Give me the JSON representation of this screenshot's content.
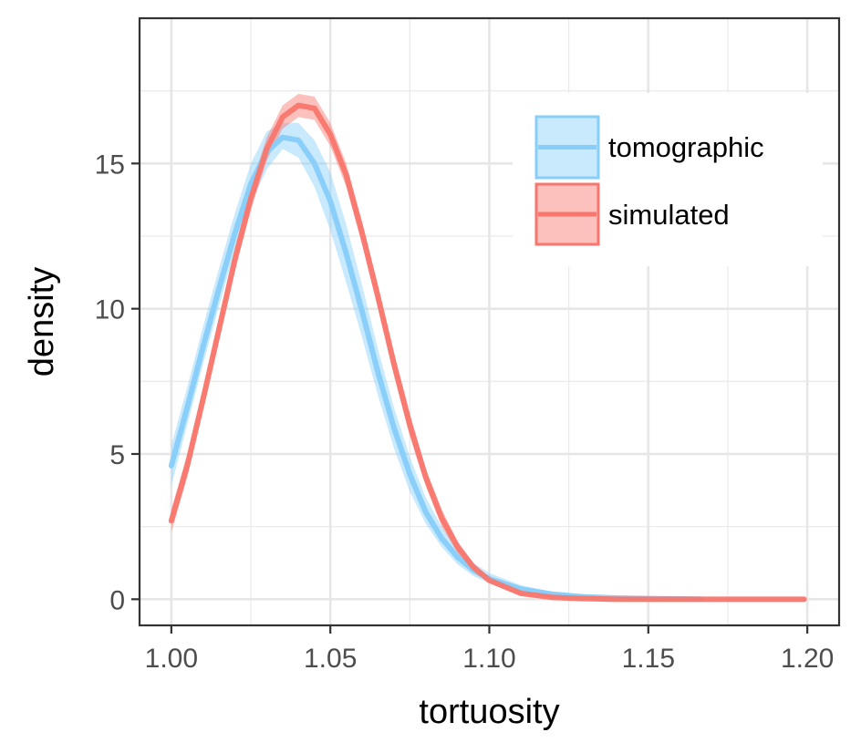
{
  "chart_data": {
    "type": "area",
    "xlabel": "tortuosity",
    "ylabel": "density",
    "xlim": [
      0.99,
      1.21
    ],
    "ylim": [
      -0.9,
      20.0
    ],
    "x_ticks": [
      1.0,
      1.05,
      1.1,
      1.15,
      1.2
    ],
    "x_tick_labels": [
      "1.00",
      "1.05",
      "1.10",
      "1.15",
      "1.20"
    ],
    "y_ticks": [
      0,
      5,
      10,
      15
    ],
    "y_tick_labels": [
      "0",
      "5",
      "10",
      "15"
    ],
    "grid": true,
    "legend_position": "top-right",
    "series": [
      {
        "name": "tomographic",
        "color": "#87CEFA",
        "x": [
          1.0,
          1.005,
          1.01,
          1.015,
          1.02,
          1.025,
          1.03,
          1.035,
          1.04,
          1.045,
          1.05,
          1.055,
          1.06,
          1.065,
          1.07,
          1.075,
          1.08,
          1.085,
          1.09,
          1.095,
          1.1,
          1.11,
          1.12,
          1.13,
          1.14,
          1.15,
          1.16,
          1.167
        ],
        "y": [
          4.6,
          6.6,
          8.7,
          10.7,
          12.6,
          14.3,
          15.4,
          15.9,
          15.8,
          15.0,
          13.7,
          11.9,
          9.9,
          7.8,
          5.9,
          4.3,
          3.0,
          2.1,
          1.45,
          1.0,
          0.7,
          0.35,
          0.17,
          0.08,
          0.04,
          0.02,
          0.01,
          0.0
        ],
        "lower": [
          3.9,
          6.0,
          8.1,
          10.1,
          12.0,
          13.6,
          14.8,
          15.5,
          15.2,
          14.2,
          12.7,
          10.9,
          9.0,
          7.0,
          5.2,
          3.7,
          2.6,
          1.8,
          1.2,
          0.8,
          0.55,
          0.25,
          0.1,
          0.04,
          0.02,
          0.0,
          0.0,
          0.0
        ],
        "upper": [
          5.3,
          7.3,
          9.4,
          11.4,
          13.3,
          15.0,
          16.1,
          16.4,
          16.4,
          15.8,
          14.7,
          12.9,
          10.8,
          8.6,
          6.6,
          4.9,
          3.5,
          2.5,
          1.75,
          1.25,
          0.9,
          0.48,
          0.25,
          0.13,
          0.07,
          0.04,
          0.02,
          0.01
        ]
      },
      {
        "name": "simulated",
        "color": "#F8766D",
        "x": [
          1.0,
          1.005,
          1.01,
          1.015,
          1.02,
          1.025,
          1.03,
          1.035,
          1.04,
          1.045,
          1.05,
          1.055,
          1.06,
          1.065,
          1.07,
          1.075,
          1.08,
          1.085,
          1.09,
          1.095,
          1.1,
          1.11,
          1.12,
          1.13,
          1.14,
          1.15,
          1.16,
          1.17,
          1.18,
          1.19,
          1.199
        ],
        "y": [
          2.7,
          4.6,
          6.9,
          9.3,
          11.7,
          13.8,
          15.5,
          16.6,
          17.0,
          16.9,
          16.0,
          14.6,
          12.6,
          10.4,
          8.1,
          6.0,
          4.2,
          2.8,
          1.8,
          1.1,
          0.65,
          0.2,
          0.06,
          0.02,
          0.0,
          0.0,
          0.0,
          0.0,
          0.0,
          0.0,
          0.0
        ],
        "lower": [
          2.3,
          4.2,
          6.5,
          8.9,
          11.3,
          13.4,
          15.1,
          16.2,
          16.6,
          16.5,
          15.6,
          14.2,
          12.2,
          10.0,
          7.7,
          5.6,
          3.9,
          2.5,
          1.6,
          0.95,
          0.55,
          0.15,
          0.03,
          0.0,
          0.0,
          0.0,
          0.0,
          0.0,
          0.0,
          0.0,
          0.0
        ],
        "upper": [
          3.1,
          5.0,
          7.3,
          9.7,
          12.1,
          14.2,
          15.9,
          17.0,
          17.4,
          17.3,
          16.4,
          15.0,
          13.0,
          10.8,
          8.5,
          6.4,
          4.5,
          3.1,
          2.0,
          1.25,
          0.75,
          0.25,
          0.09,
          0.04,
          0.02,
          0.01,
          0.0,
          0.0,
          0.0,
          0.0,
          0.0
        ]
      }
    ]
  }
}
